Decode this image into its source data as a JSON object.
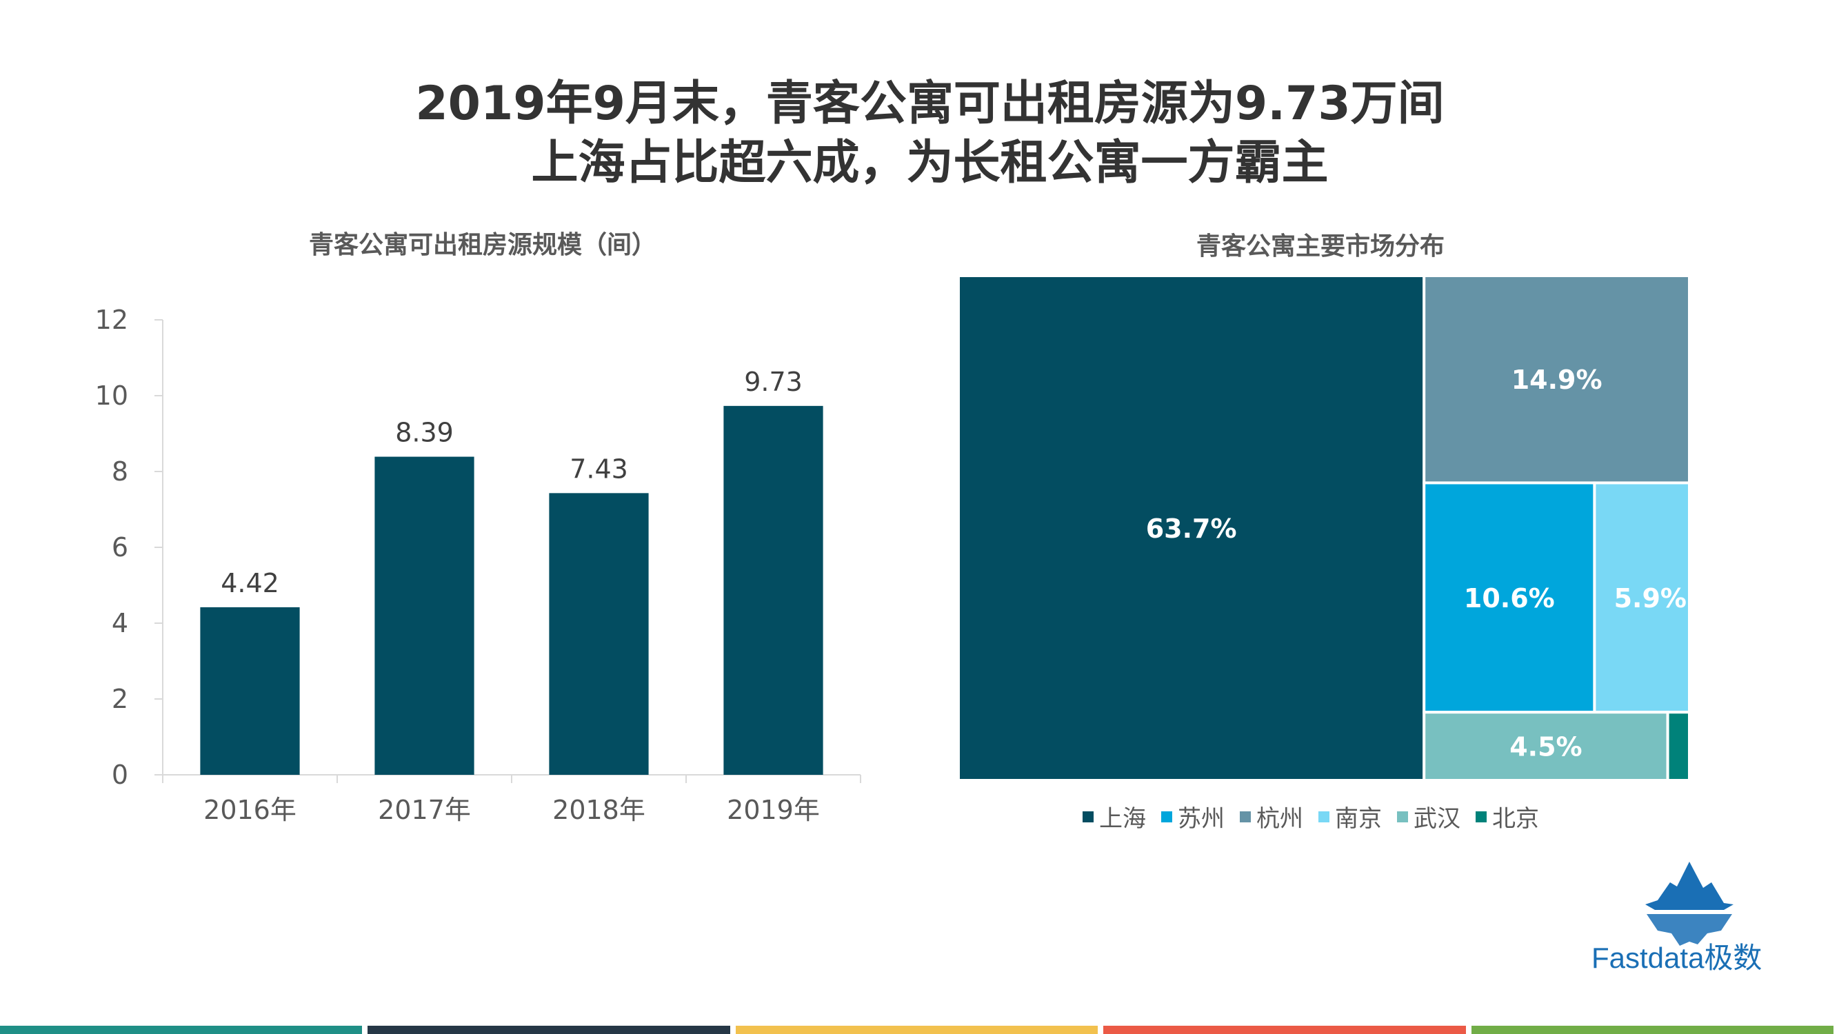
{
  "page": {
    "title_line1": "2019年9月末，青客公寓可出租房源为9.73万间",
    "title_line2": "上海占比超六成，为长租公寓一方霸主",
    "logo_text": "Fastdata极数"
  },
  "colors": {
    "bar": "#034d61",
    "shanghai": "#034d61",
    "suzhou": "#00a6dc",
    "hangzhou": "#6593a6",
    "nanjing": "#79d8f5",
    "wuhan": "#78c0c0",
    "beijing": "#00827a",
    "strip": [
      "#1f8f86",
      "#263746",
      "#f2c14e",
      "#eb5a46",
      "#71ad47"
    ]
  },
  "chart_data": [
    {
      "type": "bar",
      "title": "青客公寓可出租房源规模（间）",
      "categories": [
        "2016年",
        "2017年",
        "2018年",
        "2019年"
      ],
      "values": [
        4.42,
        8.39,
        7.43,
        9.73
      ],
      "value_labels": [
        "4.42",
        "8.39",
        "7.43",
        "9.73"
      ],
      "ylim": [
        0,
        12
      ],
      "yticks": [
        0,
        2,
        4,
        6,
        8,
        10,
        12
      ],
      "ytick_labels": [
        "0",
        "2",
        "4",
        "6",
        "8",
        "10",
        "12"
      ],
      "xlabel": "",
      "ylabel": ""
    },
    {
      "type": "treemap",
      "title": "青客公寓主要市场分布",
      "items": [
        {
          "name": "上海",
          "value": 63.7,
          "label": "63.7%"
        },
        {
          "name": "杭州",
          "value": 14.9,
          "label": "14.9%"
        },
        {
          "name": "苏州",
          "value": 10.6,
          "label": "10.6%"
        },
        {
          "name": "南京",
          "value": 5.9,
          "label": "5.9%"
        },
        {
          "name": "武汉",
          "value": 4.5,
          "label": "4.5%"
        },
        {
          "name": "北京",
          "value": 0.4,
          "label": ""
        }
      ],
      "legend": [
        "上海",
        "苏州",
        "杭州",
        "南京",
        "武汉",
        "北京"
      ]
    }
  ]
}
